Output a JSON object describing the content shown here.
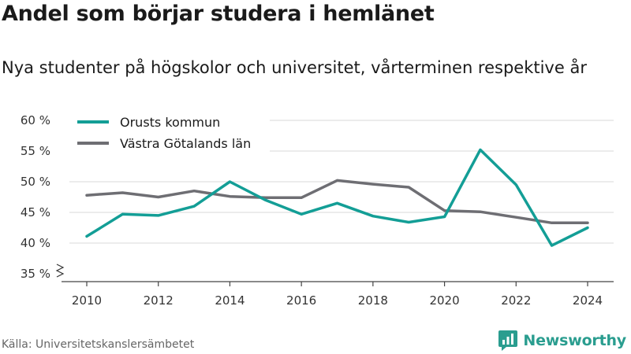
{
  "header": {
    "title": "Andel som börjar studera i hemlänet",
    "subtitle": "Nya studenter på högskolor och universitet, vårterminen respektive år"
  },
  "footer": {
    "source": "Källa: Universitetskanslersämbetet",
    "brand": "Newsworthy",
    "brand_icon": "newsworthy-logo-icon",
    "brand_color": "#2a9d8f"
  },
  "chart_data": {
    "type": "line",
    "title": "Andel som börjar studera i hemlänet",
    "subtitle": "Nya studenter på högskolor och universitet, vårterminen respektive år",
    "xlabel": "",
    "ylabel": "",
    "x": [
      2010,
      2011,
      2012,
      2013,
      2014,
      2015,
      2016,
      2017,
      2018,
      2019,
      2020,
      2021,
      2022,
      2023,
      2024
    ],
    "xticks": [
      2010,
      2012,
      2014,
      2016,
      2018,
      2020,
      2022,
      2024
    ],
    "xlim": [
      2009.5,
      2024.7
    ],
    "yticks": [
      35,
      40,
      45,
      50,
      55,
      60
    ],
    "ytick_labels": [
      "35 %",
      "40 %",
      "45 %",
      "50 %",
      "55 %",
      "60 %"
    ],
    "ylim": [
      35,
      60
    ],
    "y_axis_break": true,
    "grid": "horizontal",
    "legend_position": "top-left",
    "series": [
      {
        "name": "Orusts kommun",
        "color": "#139e96",
        "values": [
          41.1,
          44.7,
          44.5,
          46.0,
          50.0,
          47.0,
          44.7,
          46.5,
          44.4,
          43.4,
          44.3,
          55.2,
          49.5,
          39.6,
          42.5
        ]
      },
      {
        "name": "Västra Götalands län",
        "color": "#6e6e73",
        "values": [
          47.8,
          48.2,
          47.5,
          48.5,
          47.6,
          47.4,
          47.4,
          50.2,
          49.6,
          49.1,
          45.3,
          45.1,
          44.2,
          43.3,
          43.3
        ]
      }
    ]
  }
}
